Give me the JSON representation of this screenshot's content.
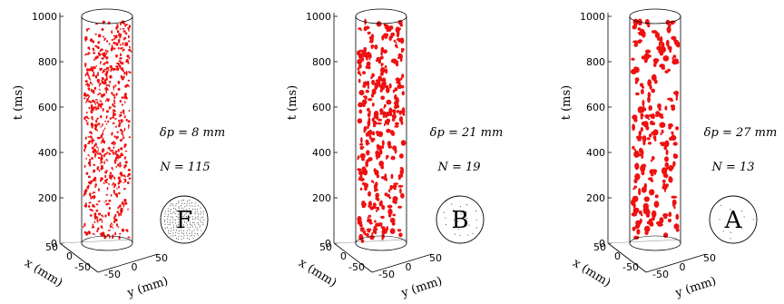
{
  "chart_data": [
    {
      "type": "scatter",
      "panel": "F",
      "annotation_delta": "δp = 8 mm",
      "annotation_N": "N = 115",
      "badge": "F",
      "badge_pattern": "dense-dots",
      "z_axis": {
        "label": "t (ms)",
        "ticks": [
          "0",
          "200",
          "400",
          "600",
          "800",
          "1000"
        ],
        "range": [
          0,
          1000
        ]
      },
      "x_axis": {
        "label": "x (mm)",
        "ticks": [
          "50",
          "0",
          "-50"
        ]
      },
      "y_axis": {
        "label": "y (mm)",
        "ticks": [
          "-50",
          "0",
          "50"
        ]
      },
      "marker_color": "#ee1111",
      "blob_count": 520,
      "blob_size": [
        1.5,
        3.5
      ]
    },
    {
      "type": "scatter",
      "panel": "B",
      "annotation_delta": "δp = 21 mm",
      "annotation_N": "N = 19",
      "badge": "B",
      "badge_pattern": "sparse-dots",
      "z_axis": {
        "label": "t (ms)",
        "ticks": [
          "0",
          "200",
          "400",
          "600",
          "800",
          "1000"
        ],
        "range": [
          0,
          1000
        ]
      },
      "x_axis": {
        "label": "x (mm)",
        "ticks": [
          "50",
          "0",
          "-50"
        ]
      },
      "y_axis": {
        "label": "y (mm)",
        "ticks": [
          "-50",
          "0",
          "50"
        ]
      },
      "marker_color": "#ee1111",
      "blob_count": 260,
      "blob_size": [
        2.5,
        6
      ]
    },
    {
      "type": "scatter",
      "panel": "A",
      "annotation_delta": "δp = 27 mm",
      "annotation_N": "N = 13",
      "badge": "A",
      "badge_pattern": "very-sparse-dots",
      "z_axis": {
        "label": "t (ms)",
        "ticks": [
          "0",
          "200",
          "400",
          "600",
          "800",
          "1000"
        ],
        "range": [
          0,
          1000
        ]
      },
      "x_axis": {
        "label": "x (mm)",
        "ticks": [
          "50",
          "0",
          "-50"
        ]
      },
      "y_axis": {
        "label": "y (mm)",
        "ticks": [
          "-50",
          "0",
          "50"
        ]
      },
      "marker_color": "#ee1111",
      "blob_count": 170,
      "blob_size": [
        3,
        7
      ]
    }
  ]
}
